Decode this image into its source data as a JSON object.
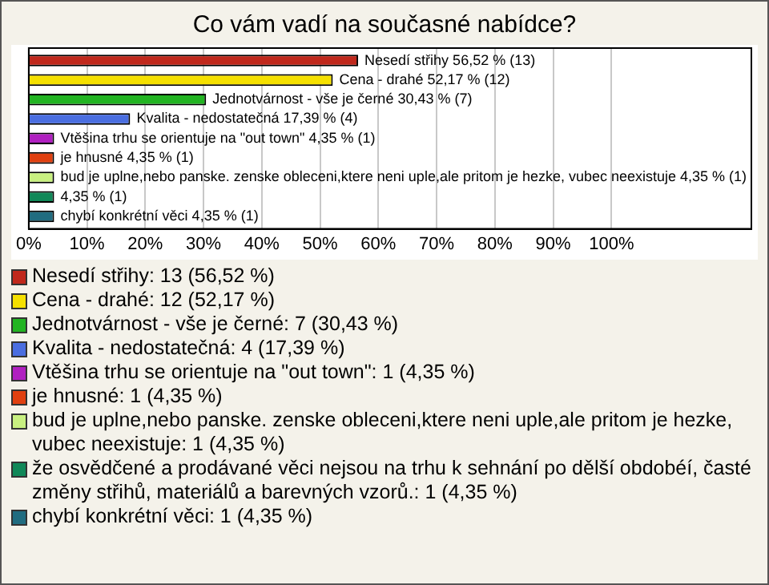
{
  "chart_data": {
    "type": "bar",
    "orientation": "horizontal",
    "title": "Co vám vadí na současné nabídce?",
    "categories": [
      null
    ],
    "series": [
      {
        "name": "Nesedí střihy: 13 (56,52 %)",
        "color": "#c0281c",
        "values": [
          56.52
        ],
        "value_labels": [
          "Nesedí střihy 56,52 % (13)"
        ]
      },
      {
        "name": "Cena - drahé: 12 (52,17 %)",
        "color": "#f5e000",
        "values": [
          52.17
        ],
        "value_labels": [
          "Cena - drahé 52,17 % (12)"
        ]
      },
      {
        "name": "Jednotvárnost - vše je černé: 7 (30,43 %)",
        "color": "#22b422",
        "values": [
          30.43
        ],
        "value_labels": [
          "Jednotvárnost - vše je černé 30,43 % (7)"
        ]
      },
      {
        "name": "Kvalita - nedostatečná: 4 (17,39 %)",
        "color": "#4a6ee0",
        "values": [
          17.39
        ],
        "value_labels": [
          "Kvalita - nedostatečná 17,39 % (4)"
        ]
      },
      {
        "name": "Vtěšina trhu se orientuje na \"out town\": 1 (4,35 %)",
        "color": "#b020c0",
        "values": [
          4.35
        ],
        "value_labels": [
          "Vtěšina trhu se orientuje na \"out town\" 4,35 % (1)"
        ]
      },
      {
        "name": "je hnusné: 1 (4,35 %)",
        "color": "#e04010",
        "values": [
          4.35
        ],
        "value_labels": [
          "je hnusné 4,35 % (1)"
        ]
      },
      {
        "name": "bud je uplne,nebo panske. zenske obleceni,ktere neni uple,ale pritom je hezke, vubec neexistuje: 1 (4,35 %)",
        "color": "#c8f080",
        "values": [
          4.35
        ],
        "value_labels": [
          "bud je uplne,nebo panske. zenske obleceni,ktere neni uple,ale pritom je hezke, vubec neexistuje 4,35 % (1)"
        ]
      },
      {
        "name": "že osvědčené a prodávané věci nejsou na trhu k sehnání po dělší obdobéí, časté změny střihů, materiálů a barevných vzorů.: 1 (4,35 %)",
        "color": "#108858",
        "values": [
          4.35
        ],
        "value_labels": [
          "4,35 % (1)"
        ]
      },
      {
        "name": "chybí konkrétní věci: 1 (4,35 %)",
        "color": "#206c80",
        "values": [
          4.35
        ],
        "value_labels": [
          "chybí konkrétní věci 4,35 % (1)"
        ]
      }
    ],
    "xlim": [
      0,
      124
    ],
    "xticks": [
      {
        "value": 0,
        "label": "0%"
      },
      {
        "value": 10,
        "label": "10%"
      },
      {
        "value": 20,
        "label": "20%"
      },
      {
        "value": 30,
        "label": "30%"
      },
      {
        "value": 40,
        "label": "40%"
      },
      {
        "value": 50,
        "label": "50%"
      },
      {
        "value": 60,
        "label": "60%"
      },
      {
        "value": 70,
        "label": "70%"
      },
      {
        "value": 80,
        "label": "80%"
      },
      {
        "value": 90,
        "label": "90%"
      },
      {
        "value": 100,
        "label": "100%"
      }
    ],
    "grid": "x",
    "tick_labels": "x",
    "legend": "bottom"
  }
}
